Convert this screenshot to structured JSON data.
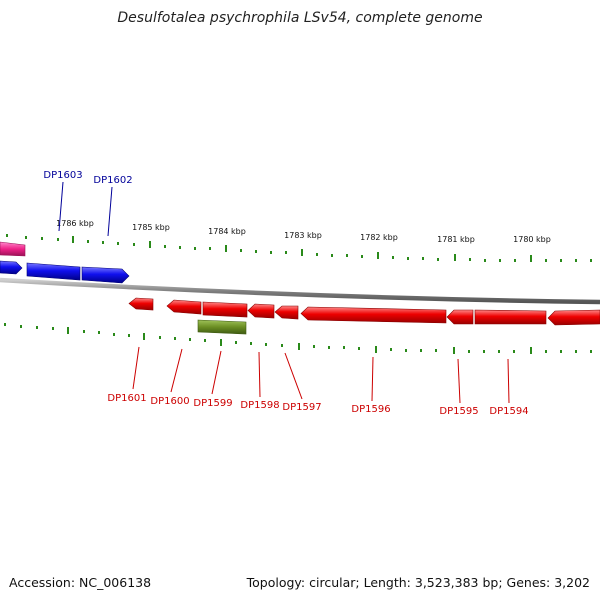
{
  "title": "Desulfotalea psychrophila LSv54, complete genome",
  "footer": {
    "accession": "Accession: NC_006138",
    "summary": "Topology: circular; Length: 3,523,383 bp; Genes: 3,202"
  },
  "colors": {
    "backbone": "#8a8a8a",
    "ticks": "#2a8a1a",
    "forward_gene": "#1010ee",
    "reverse_gene": "#ee0000",
    "pink_gene": "#ee2288",
    "olive_gene": "#6b8e23",
    "forward_label": "#000099",
    "reverse_label": "#cc0000"
  },
  "scale_labels": [
    "1786 kbp",
    "1785 kbp",
    "1784 kbp",
    "1783 kbp",
    "1782 kbp",
    "1781 kbp",
    "1780 kbp"
  ],
  "forward_gene_labels": [
    "DP1603",
    "DP1602"
  ],
  "reverse_gene_labels": [
    "DP1601",
    "DP1600",
    "DP1599",
    "DP1598",
    "DP1597",
    "DP1596",
    "DP1595",
    "DP1594"
  ]
}
